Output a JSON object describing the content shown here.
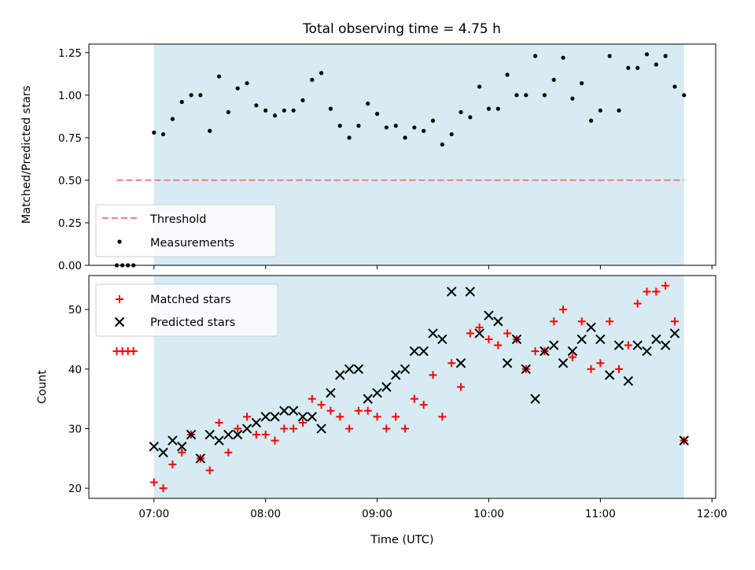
{
  "title": "Total observing time = 4.75 h",
  "colors": {
    "span_fill": "#add8e6",
    "threshold": "#f08080",
    "matched": "#ff0000",
    "predicted": "#000000",
    "measurement": "#000000"
  },
  "chart_data": [
    {
      "type": "scatter",
      "name": "ratio",
      "ylabel": "Matched/Predicted stars",
      "ylim": [
        0,
        1.3
      ],
      "yticks": [
        0.0,
        0.25,
        0.5,
        0.75,
        1.0,
        1.25
      ],
      "ytick_labels": [
        "0.00",
        "0.25",
        "0.50",
        "0.75",
        "1.00",
        "1.25"
      ],
      "xlim": [
        "06:25",
        "12:02"
      ],
      "observing_span": [
        "07:00",
        "11:45"
      ],
      "legend": {
        "placement": "lower-left",
        "entries": [
          "Threshold",
          "Measurements"
        ]
      },
      "threshold": {
        "name": "Threshold",
        "value": 0.5,
        "x_range": [
          "06:40",
          "11:45"
        ]
      },
      "series": [
        {
          "name": "Measurements",
          "x": [
            "06:40",
            "06:43",
            "06:46",
            "06:49",
            "07:00",
            "07:05",
            "07:10",
            "07:15",
            "07:20",
            "07:25",
            "07:30",
            "07:35",
            "07:40",
            "07:45",
            "07:50",
            "07:55",
            "08:00",
            "08:05",
            "08:10",
            "08:15",
            "08:20",
            "08:25",
            "08:30",
            "08:35",
            "08:40",
            "08:45",
            "08:50",
            "08:55",
            "09:00",
            "09:05",
            "09:10",
            "09:15",
            "09:20",
            "09:25",
            "09:30",
            "09:35",
            "09:40",
            "09:45",
            "09:50",
            "09:55",
            "10:00",
            "10:05",
            "10:10",
            "10:15",
            "10:20",
            "10:25",
            "10:30",
            "10:35",
            "10:40",
            "10:45",
            "10:50",
            "10:55",
            "11:00",
            "11:05",
            "11:10",
            "11:15",
            "11:20",
            "11:25",
            "11:30",
            "11:35",
            "11:40",
            "11:45"
          ],
          "y": [
            0.0,
            0.0,
            0.0,
            0.0,
            0.78,
            0.77,
            0.86,
            0.96,
            1.0,
            1.0,
            0.79,
            1.11,
            0.9,
            1.04,
            1.07,
            0.94,
            0.91,
            0.88,
            0.91,
            0.91,
            0.97,
            1.09,
            1.13,
            0.92,
            0.82,
            0.75,
            0.82,
            0.95,
            0.89,
            0.81,
            0.82,
            0.75,
            0.81,
            0.79,
            0.85,
            0.71,
            0.77,
            0.9,
            0.87,
            1.05,
            0.92,
            0.92,
            1.12,
            1.0,
            1.0,
            1.23,
            1.0,
            1.09,
            1.22,
            0.98,
            1.07,
            0.85,
            0.91,
            1.23,
            0.91,
            1.16,
            1.16,
            1.24,
            1.18,
            1.23,
            1.05,
            1.0
          ]
        }
      ]
    },
    {
      "type": "scatter",
      "name": "counts",
      "ylabel": "Count",
      "xlabel": "Time (UTC)",
      "ylim": [
        18.3,
        55.7
      ],
      "yticks": [
        20,
        30,
        40,
        50
      ],
      "ytick_labels": [
        "20",
        "30",
        "40",
        "50"
      ],
      "xlim": [
        "06:25",
        "12:02"
      ],
      "xticks": [
        "07:00",
        "08:00",
        "09:00",
        "10:00",
        "11:00",
        "12:00"
      ],
      "observing_span": [
        "07:00",
        "11:45"
      ],
      "legend": {
        "placement": "top-left",
        "entries": [
          "Matched stars",
          "Predicted stars"
        ]
      },
      "series": [
        {
          "name": "Matched stars",
          "marker": "plus",
          "x": [
            "06:40",
            "06:43",
            "06:46",
            "06:49",
            "07:00",
            "07:05",
            "07:10",
            "07:15",
            "07:20",
            "07:25",
            "07:30",
            "07:35",
            "07:40",
            "07:45",
            "07:50",
            "07:55",
            "08:00",
            "08:05",
            "08:10",
            "08:15",
            "08:20",
            "08:25",
            "08:30",
            "08:35",
            "08:40",
            "08:45",
            "08:50",
            "08:55",
            "09:00",
            "09:05",
            "09:10",
            "09:15",
            "09:20",
            "09:25",
            "09:30",
            "09:35",
            "09:40",
            "09:45",
            "09:50",
            "09:55",
            "10:00",
            "10:05",
            "10:10",
            "10:15",
            "10:20",
            "10:25",
            "10:30",
            "10:35",
            "10:40",
            "10:45",
            "10:50",
            "10:55",
            "11:00",
            "11:05",
            "11:10",
            "11:15",
            "11:20",
            "11:25",
            "11:30",
            "11:35",
            "11:40",
            "11:45"
          ],
          "y": [
            43,
            43,
            43,
            43,
            21,
            20,
            24,
            26,
            29,
            25,
            23,
            31,
            26,
            30,
            32,
            29,
            29,
            28,
            30,
            30,
            31,
            35,
            34,
            33,
            32,
            30,
            33,
            33,
            32,
            30,
            32,
            30,
            35,
            34,
            39,
            32,
            41,
            37,
            46,
            47,
            45,
            44,
            46,
            45,
            40,
            43,
            43,
            48,
            50,
            42,
            48,
            40,
            41,
            48,
            40,
            44,
            51,
            53,
            53,
            54,
            48,
            28
          ]
        },
        {
          "name": "Predicted stars",
          "marker": "x",
          "x": [
            "07:00",
            "07:05",
            "07:10",
            "07:15",
            "07:20",
            "07:25",
            "07:30",
            "07:35",
            "07:40",
            "07:45",
            "07:50",
            "07:55",
            "08:00",
            "08:05",
            "08:10",
            "08:15",
            "08:20",
            "08:25",
            "08:30",
            "08:35",
            "08:40",
            "08:45",
            "08:50",
            "08:55",
            "09:00",
            "09:05",
            "09:10",
            "09:15",
            "09:20",
            "09:25",
            "09:30",
            "09:35",
            "09:40",
            "09:45",
            "09:50",
            "09:55",
            "10:00",
            "10:05",
            "10:10",
            "10:15",
            "10:20",
            "10:25",
            "10:30",
            "10:35",
            "10:40",
            "10:45",
            "10:50",
            "10:55",
            "11:00",
            "11:05",
            "11:10",
            "11:15",
            "11:20",
            "11:25",
            "11:30",
            "11:35",
            "11:40",
            "11:45"
          ],
          "y": [
            27,
            26,
            28,
            27,
            29,
            25,
            29,
            28,
            29,
            29,
            30,
            31,
            32,
            32,
            33,
            33,
            32,
            32,
            30,
            36,
            39,
            40,
            40,
            35,
            36,
            37,
            39,
            40,
            43,
            43,
            46,
            45,
            53,
            41,
            53,
            46,
            49,
            48,
            41,
            45,
            40,
            35,
            43,
            44,
            41,
            43,
            45,
            47,
            45,
            39,
            44,
            38,
            44,
            43,
            45,
            44,
            46,
            28
          ]
        }
      ]
    }
  ]
}
